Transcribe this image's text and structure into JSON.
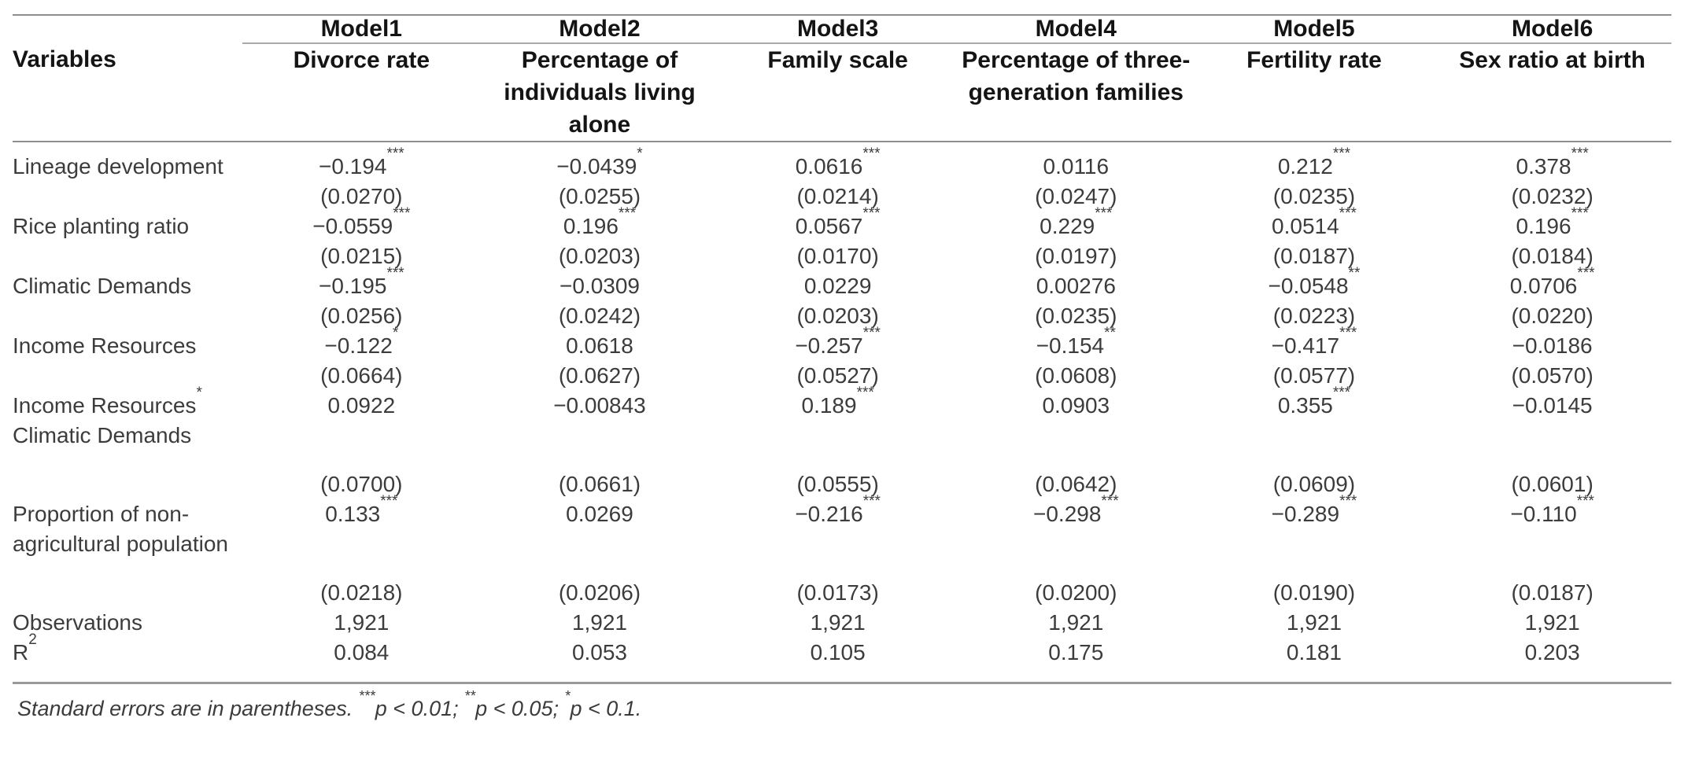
{
  "table": {
    "variables_header": "Variables",
    "models": [
      "Model1",
      "Model2",
      "Model3",
      "Model4",
      "Model5",
      "Model6"
    ],
    "dependent_vars": [
      "Divorce rate",
      "Percentage of individuals living alone",
      "Family scale",
      "Percentage of three-generation families",
      "Fertility rate",
      "Sex ratio at birth"
    ],
    "rows": [
      {
        "kind": "coef",
        "label": "Lineage development",
        "sup": "",
        "cells": [
          {
            "v": "−0.194",
            "s": "***"
          },
          {
            "v": "−0.0439",
            "s": "*"
          },
          {
            "v": "0.0616",
            "s": "***"
          },
          {
            "v": "0.0116",
            "s": ""
          },
          {
            "v": "0.212",
            "s": "***"
          },
          {
            "v": "0.378",
            "s": "***"
          }
        ]
      },
      {
        "kind": "se",
        "label": "",
        "sup": "",
        "cells": [
          {
            "v": "(0.0270)",
            "s": ""
          },
          {
            "v": "(0.0255)",
            "s": ""
          },
          {
            "v": "(0.0214)",
            "s": ""
          },
          {
            "v": "(0.0247)",
            "s": ""
          },
          {
            "v": "(0.0235)",
            "s": ""
          },
          {
            "v": "(0.0232)",
            "s": ""
          }
        ]
      },
      {
        "kind": "coef",
        "label": "Rice planting ratio",
        "sup": "",
        "cells": [
          {
            "v": "−0.0559",
            "s": "***"
          },
          {
            "v": "0.196",
            "s": "***"
          },
          {
            "v": "0.0567",
            "s": "***"
          },
          {
            "v": "0.229",
            "s": "***"
          },
          {
            "v": "0.0514",
            "s": "***"
          },
          {
            "v": "0.196",
            "s": "***"
          }
        ]
      },
      {
        "kind": "se",
        "label": "",
        "sup": "",
        "cells": [
          {
            "v": "(0.0215)",
            "s": ""
          },
          {
            "v": "(0.0203)",
            "s": ""
          },
          {
            "v": "(0.0170)",
            "s": ""
          },
          {
            "v": "(0.0197)",
            "s": ""
          },
          {
            "v": "(0.0187)",
            "s": ""
          },
          {
            "v": "(0.0184)",
            "s": ""
          }
        ]
      },
      {
        "kind": "coef",
        "label": "Climatic Demands",
        "sup": "",
        "cells": [
          {
            "v": "−0.195",
            "s": "***"
          },
          {
            "v": "−0.0309",
            "s": ""
          },
          {
            "v": "0.0229",
            "s": ""
          },
          {
            "v": "0.00276",
            "s": ""
          },
          {
            "v": "−0.0548",
            "s": "**"
          },
          {
            "v": "0.0706",
            "s": "***"
          }
        ]
      },
      {
        "kind": "se",
        "label": "",
        "sup": "",
        "cells": [
          {
            "v": "(0.0256)",
            "s": ""
          },
          {
            "v": "(0.0242)",
            "s": ""
          },
          {
            "v": "(0.0203)",
            "s": ""
          },
          {
            "v": "(0.0235)",
            "s": ""
          },
          {
            "v": "(0.0223)",
            "s": ""
          },
          {
            "v": "(0.0220)",
            "s": ""
          }
        ]
      },
      {
        "kind": "coef",
        "label": "Income Resources",
        "sup": "",
        "cells": [
          {
            "v": "−0.122",
            "s": "*"
          },
          {
            "v": "0.0618",
            "s": ""
          },
          {
            "v": "−0.257",
            "s": "***"
          },
          {
            "v": "−0.154",
            "s": "**"
          },
          {
            "v": "−0.417",
            "s": "***"
          },
          {
            "v": "−0.0186",
            "s": ""
          }
        ]
      },
      {
        "kind": "se",
        "label": "",
        "sup": "",
        "cells": [
          {
            "v": "(0.0664)",
            "s": ""
          },
          {
            "v": "(0.0627)",
            "s": ""
          },
          {
            "v": "(0.0527)",
            "s": ""
          },
          {
            "v": "(0.0608)",
            "s": ""
          },
          {
            "v": "(0.0577)",
            "s": ""
          },
          {
            "v": "(0.0570)",
            "s": ""
          }
        ]
      },
      {
        "kind": "coef",
        "label": "Income Resources",
        "sup": "*",
        "cells": [
          {
            "v": "0.0922",
            "s": ""
          },
          {
            "v": "−0.00843",
            "s": ""
          },
          {
            "v": "0.189",
            "s": "***"
          },
          {
            "v": "0.0903",
            "s": ""
          },
          {
            "v": "0.355",
            "s": "***"
          },
          {
            "v": "−0.0145",
            "s": ""
          }
        ]
      },
      {
        "kind": "cont",
        "label": "Climatic Demands",
        "sup": "",
        "cells": []
      },
      {
        "kind": "se",
        "gap": true,
        "label": "",
        "sup": "",
        "cells": [
          {
            "v": "(0.0700)",
            "s": ""
          },
          {
            "v": "(0.0661)",
            "s": ""
          },
          {
            "v": "(0.0555)",
            "s": ""
          },
          {
            "v": "(0.0642)",
            "s": ""
          },
          {
            "v": "(0.0609)",
            "s": ""
          },
          {
            "v": "(0.0601)",
            "s": ""
          }
        ]
      },
      {
        "kind": "coef",
        "label": "Proportion of non-",
        "sup": "",
        "cells": [
          {
            "v": "0.133",
            "s": "***"
          },
          {
            "v": "0.0269",
            "s": ""
          },
          {
            "v": "−0.216",
            "s": "***"
          },
          {
            "v": "−0.298",
            "s": "***"
          },
          {
            "v": "−0.289",
            "s": "***"
          },
          {
            "v": "−0.110",
            "s": "***"
          }
        ]
      },
      {
        "kind": "cont",
        "label": "agricultural population",
        "sup": "",
        "cells": []
      },
      {
        "kind": "se",
        "gap": true,
        "label": "",
        "sup": "",
        "cells": [
          {
            "v": "(0.0218)",
            "s": ""
          },
          {
            "v": "(0.0206)",
            "s": ""
          },
          {
            "v": "(0.0173)",
            "s": ""
          },
          {
            "v": "(0.0200)",
            "s": ""
          },
          {
            "v": "(0.0190)",
            "s": ""
          },
          {
            "v": "(0.0187)",
            "s": ""
          }
        ]
      },
      {
        "kind": "stat",
        "label": "Observations",
        "sup": "",
        "cells": [
          {
            "v": "1,921",
            "s": ""
          },
          {
            "v": "1,921",
            "s": ""
          },
          {
            "v": "1,921",
            "s": ""
          },
          {
            "v": "1,921",
            "s": ""
          },
          {
            "v": "1,921",
            "s": ""
          },
          {
            "v": "1,921",
            "s": ""
          }
        ]
      },
      {
        "kind": "stat",
        "label": "R",
        "sup": "2",
        "cells": [
          {
            "v": "0.084",
            "s": ""
          },
          {
            "v": "0.053",
            "s": ""
          },
          {
            "v": "0.105",
            "s": ""
          },
          {
            "v": "0.175",
            "s": ""
          },
          {
            "v": "0.181",
            "s": ""
          },
          {
            "v": "0.203",
            "s": ""
          }
        ]
      }
    ],
    "footnote": {
      "prefix": "Standard errors are in parentheses. ",
      "sig_levels": [
        {
          "stars": "***",
          "text": "p < 0.01; "
        },
        {
          "stars": "**",
          "text": "p < 0.05; "
        },
        {
          "stars": "*",
          "text": "p < 0.1."
        }
      ]
    }
  }
}
